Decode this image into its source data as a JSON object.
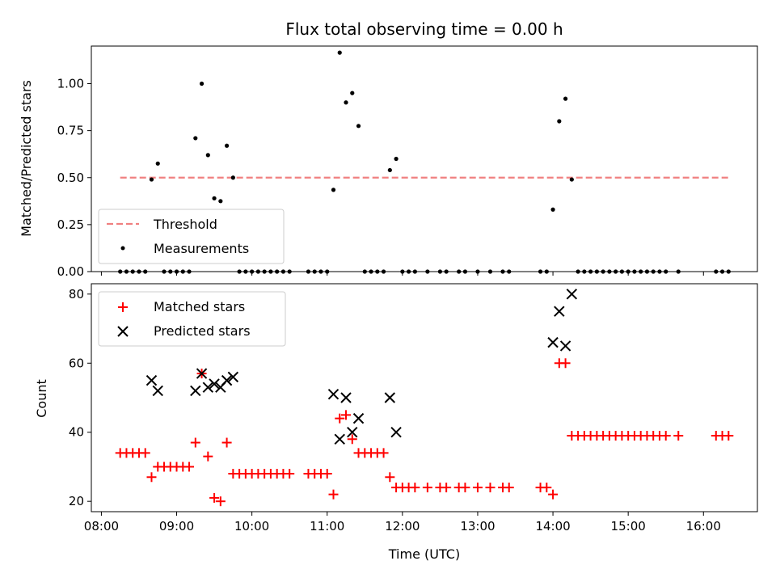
{
  "chart_data": [
    {
      "type": "scatter",
      "title": "Flux total observing time = 0.00 h",
      "xlabel": "",
      "ylabel": "Matched/Predicted stars",
      "ylim": [
        0,
        1.2
      ],
      "yticks": [
        "0.00",
        "0.25",
        "0.50",
        "0.75",
        "1.00"
      ],
      "ytick_values": [
        0,
        0.25,
        0.5,
        0.75,
        1.0
      ],
      "xlim": [
        "07:52",
        "16:43"
      ],
      "legend": {
        "placement": "lower-left",
        "entries": [
          "Threshold",
          "Measurements"
        ]
      },
      "threshold": {
        "name": "Threshold",
        "value": 0.5,
        "x_start": "08:15",
        "x_end": "16:20",
        "color": "#f08080"
      },
      "series": [
        {
          "name": "Measurements",
          "color": "#000000",
          "points": [
            [
              "08:15",
              0
            ],
            [
              "08:20",
              0
            ],
            [
              "08:25",
              0
            ],
            [
              "08:30",
              0
            ],
            [
              "08:35",
              0
            ],
            [
              "08:40",
              0.49
            ],
            [
              "08:45",
              0.575
            ],
            [
              "08:50",
              0
            ],
            [
              "08:55",
              0
            ],
            [
              "09:00",
              0
            ],
            [
              "09:05",
              0
            ],
            [
              "09:10",
              0
            ],
            [
              "09:15",
              0.71
            ],
            [
              "09:20",
              1.0
            ],
            [
              "09:25",
              0.62
            ],
            [
              "09:30",
              0.39
            ],
            [
              "09:35",
              0.375
            ],
            [
              "09:40",
              0.67
            ],
            [
              "09:45",
              0.5
            ],
            [
              "09:50",
              0
            ],
            [
              "09:55",
              0
            ],
            [
              "10:00",
              0
            ],
            [
              "10:05",
              0
            ],
            [
              "10:10",
              0
            ],
            [
              "10:15",
              0
            ],
            [
              "10:20",
              0
            ],
            [
              "10:25",
              0
            ],
            [
              "10:30",
              0
            ],
            [
              "10:45",
              0
            ],
            [
              "10:50",
              0
            ],
            [
              "10:55",
              0
            ],
            [
              "11:00",
              0
            ],
            [
              "11:05",
              0.435
            ],
            [
              "11:10",
              1.165
            ],
            [
              "11:15",
              0.9
            ],
            [
              "11:20",
              0.95
            ],
            [
              "11:25",
              0.775
            ],
            [
              "11:30",
              0
            ],
            [
              "11:35",
              0
            ],
            [
              "11:40",
              0
            ],
            [
              "11:45",
              0
            ],
            [
              "11:50",
              0.54
            ],
            [
              "11:55",
              0.6
            ],
            [
              "12:00",
              0
            ],
            [
              "12:05",
              0
            ],
            [
              "12:10",
              0
            ],
            [
              "12:20",
              0
            ],
            [
              "12:30",
              0
            ],
            [
              "12:35",
              0
            ],
            [
              "12:45",
              0
            ],
            [
              "12:50",
              0
            ],
            [
              "13:00",
              0
            ],
            [
              "13:10",
              0
            ],
            [
              "13:20",
              0
            ],
            [
              "13:25",
              0
            ],
            [
              "13:50",
              0
            ],
            [
              "13:55",
              0
            ],
            [
              "14:00",
              0.33
            ],
            [
              "14:05",
              0.8
            ],
            [
              "14:10",
              0.92
            ],
            [
              "14:15",
              0.49
            ],
            [
              "14:20",
              0
            ],
            [
              "14:25",
              0
            ],
            [
              "14:30",
              0
            ],
            [
              "14:35",
              0
            ],
            [
              "14:40",
              0
            ],
            [
              "14:45",
              0
            ],
            [
              "14:50",
              0
            ],
            [
              "14:55",
              0
            ],
            [
              "15:00",
              0
            ],
            [
              "15:05",
              0
            ],
            [
              "15:10",
              0
            ],
            [
              "15:15",
              0
            ],
            [
              "15:20",
              0
            ],
            [
              "15:25",
              0
            ],
            [
              "15:30",
              0
            ],
            [
              "15:40",
              0
            ],
            [
              "16:10",
              0
            ],
            [
              "16:15",
              0
            ],
            [
              "16:20",
              0
            ]
          ]
        }
      ]
    },
    {
      "type": "scatter",
      "title": "",
      "xlabel": "Time (UTC)",
      "ylabel": "Count",
      "ylim": [
        17,
        83
      ],
      "yticks": [
        "20",
        "40",
        "60",
        "80"
      ],
      "ytick_values": [
        20,
        40,
        60,
        80
      ],
      "xlim": [
        "07:52",
        "16:43"
      ],
      "xticks": [
        "08:00",
        "09:00",
        "10:00",
        "11:00",
        "12:00",
        "13:00",
        "14:00",
        "15:00",
        "16:00"
      ],
      "legend": {
        "placement": "upper-left",
        "entries": [
          "Matched stars",
          "Predicted stars"
        ]
      },
      "series": [
        {
          "name": "Matched stars",
          "marker": "plus",
          "color": "#ff0000",
          "points": [
            [
              "08:15",
              34
            ],
            [
              "08:20",
              34
            ],
            [
              "08:25",
              34
            ],
            [
              "08:30",
              34
            ],
            [
              "08:35",
              34
            ],
            [
              "08:40",
              27
            ],
            [
              "08:45",
              30
            ],
            [
              "08:50",
              30
            ],
            [
              "08:55",
              30
            ],
            [
              "09:00",
              30
            ],
            [
              "09:05",
              30
            ],
            [
              "09:10",
              30
            ],
            [
              "09:15",
              37
            ],
            [
              "09:20",
              57
            ],
            [
              "09:25",
              33
            ],
            [
              "09:30",
              21
            ],
            [
              "09:35",
              20
            ],
            [
              "09:40",
              37
            ],
            [
              "09:45",
              28
            ],
            [
              "09:50",
              28
            ],
            [
              "09:55",
              28
            ],
            [
              "10:00",
              28
            ],
            [
              "10:05",
              28
            ],
            [
              "10:10",
              28
            ],
            [
              "10:15",
              28
            ],
            [
              "10:20",
              28
            ],
            [
              "10:25",
              28
            ],
            [
              "10:30",
              28
            ],
            [
              "10:45",
              28
            ],
            [
              "10:50",
              28
            ],
            [
              "10:55",
              28
            ],
            [
              "11:00",
              28
            ],
            [
              "11:05",
              22
            ],
            [
              "11:10",
              44
            ],
            [
              "11:15",
              45
            ],
            [
              "11:20",
              38
            ],
            [
              "11:25",
              34
            ],
            [
              "11:30",
              34
            ],
            [
              "11:35",
              34
            ],
            [
              "11:40",
              34
            ],
            [
              "11:45",
              34
            ],
            [
              "11:50",
              27
            ],
            [
              "11:55",
              24
            ],
            [
              "12:00",
              24
            ],
            [
              "12:05",
              24
            ],
            [
              "12:10",
              24
            ],
            [
              "12:20",
              24
            ],
            [
              "12:30",
              24
            ],
            [
              "12:35",
              24
            ],
            [
              "12:45",
              24
            ],
            [
              "12:50",
              24
            ],
            [
              "13:00",
              24
            ],
            [
              "13:10",
              24
            ],
            [
              "13:20",
              24
            ],
            [
              "13:25",
              24
            ],
            [
              "13:50",
              24
            ],
            [
              "13:55",
              24
            ],
            [
              "14:00",
              22
            ],
            [
              "14:05",
              60
            ],
            [
              "14:10",
              60
            ],
            [
              "14:15",
              39
            ],
            [
              "14:20",
              39
            ],
            [
              "14:25",
              39
            ],
            [
              "14:30",
              39
            ],
            [
              "14:35",
              39
            ],
            [
              "14:40",
              39
            ],
            [
              "14:45",
              39
            ],
            [
              "14:50",
              39
            ],
            [
              "14:55",
              39
            ],
            [
              "15:00",
              39
            ],
            [
              "15:05",
              39
            ],
            [
              "15:10",
              39
            ],
            [
              "15:15",
              39
            ],
            [
              "15:20",
              39
            ],
            [
              "15:25",
              39
            ],
            [
              "15:30",
              39
            ],
            [
              "15:40",
              39
            ],
            [
              "16:10",
              39
            ],
            [
              "16:15",
              39
            ],
            [
              "16:20",
              39
            ]
          ]
        },
        {
          "name": "Predicted stars",
          "marker": "x",
          "color": "#000000",
          "points": [
            [
              "08:40",
              55
            ],
            [
              "08:45",
              52
            ],
            [
              "09:15",
              52
            ],
            [
              "09:20",
              57
            ],
            [
              "09:25",
              53
            ],
            [
              "09:30",
              54
            ],
            [
              "09:35",
              53
            ],
            [
              "09:40",
              55
            ],
            [
              "09:45",
              56
            ],
            [
              "11:05",
              51
            ],
            [
              "11:10",
              38
            ],
            [
              "11:15",
              50
            ],
            [
              "11:20",
              40
            ],
            [
              "11:25",
              44
            ],
            [
              "11:50",
              50
            ],
            [
              "11:55",
              40
            ],
            [
              "14:00",
              66
            ],
            [
              "14:05",
              75
            ],
            [
              "14:10",
              65
            ],
            [
              "14:15",
              80
            ]
          ]
        }
      ]
    }
  ]
}
